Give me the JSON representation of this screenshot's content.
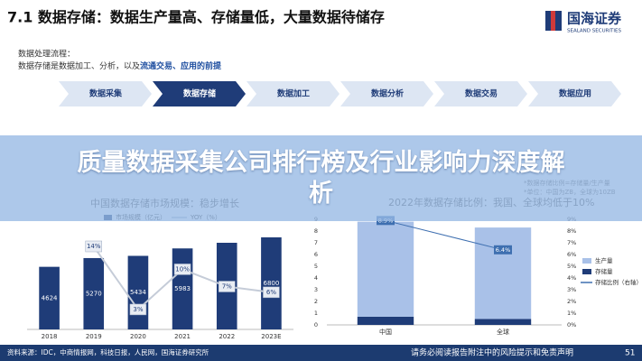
{
  "header": {
    "title": "7.1 数据存储：数据生产量高、存储量低，大量数据待储存",
    "logo_name": "国海证券",
    "logo_sub": "SEALAND SECURITIES"
  },
  "intro": {
    "line1": "数据处理流程：",
    "line2_prefix": "数据存储是数据加工、分析，以及",
    "line2_highlight": "流通交易、应用的前提"
  },
  "flow": {
    "steps": [
      "数据采集",
      "数据存储",
      "数据加工",
      "数据分析",
      "数据交易",
      "数据应用"
    ]
  },
  "banner": {
    "text": "质量数据采集公司排行榜及行业影响力深度解析"
  },
  "chart_data": [
    {
      "type": "bar_line",
      "title": "中国数据存储市场规模：稳步增长",
      "categories": [
        "2018",
        "2019",
        "2020",
        "2021",
        "2022",
        "2023E"
      ],
      "series": [
        {
          "name": "市场规模（亿元）",
          "color": "#1f3c78",
          "values": [
            4624,
            5270,
            5434,
            5983,
            6400,
            6800
          ]
        },
        {
          "name": "YOY（%）",
          "color": "#c5ccd8",
          "axis": "y2",
          "values": [
            null,
            14,
            3,
            10,
            7,
            6
          ],
          "value_labels": [
            null,
            "14%",
            "3%",
            "10%",
            "7%",
            "6%"
          ]
        }
      ]
    },
    {
      "type": "stacked_bar_line",
      "title": "2022年数据存储比例：我国、全球均低于10%",
      "notes": [
        "*数据存储比例=存储量/生产量",
        "*单位：中国为ZB，全球为10ZB"
      ],
      "categories": [
        "中国",
        "全球"
      ],
      "series": [
        {
          "name": "生产量",
          "color": "#a9c1e8",
          "values": [
            8.1,
            7.8
          ]
        },
        {
          "name": "存储量",
          "color": "#1f3c78",
          "values": [
            0.7,
            0.5
          ]
        },
        {
          "name": "存储比例（右轴）",
          "color": "#3e6fb0",
          "axis": "y2",
          "values": [
            8.9,
            6.4
          ],
          "value_labels": [
            "8.9%",
            "6.4%"
          ]
        }
      ],
      "ylim": [
        0,
        9
      ],
      "yticks": [
        0,
        1,
        2,
        3,
        4,
        5,
        6,
        7,
        8,
        9
      ],
      "y2lim": [
        0,
        9
      ],
      "y2ticks": [
        {
          "value": 0,
          "label": "0%"
        },
        {
          "value": 1,
          "label": "1%"
        },
        {
          "value": 2,
          "label": "2%"
        },
        {
          "value": 3,
          "label": "3%"
        },
        {
          "value": 4,
          "label": "4%"
        },
        {
          "value": 5,
          "label": "5%"
        },
        {
          "value": 6,
          "label": "6%"
        },
        {
          "value": 7,
          "label": "7%"
        },
        {
          "value": 8,
          "label": "8%"
        },
        {
          "value": 9,
          "label": "9%"
        }
      ]
    }
  ],
  "footer": {
    "source": "资料来源：IDC，中商情报网，科技日报，人民网，国海证券研究所",
    "disclaimer": "请务必阅读报告附注中的风险提示和免责声明",
    "page": "51"
  }
}
